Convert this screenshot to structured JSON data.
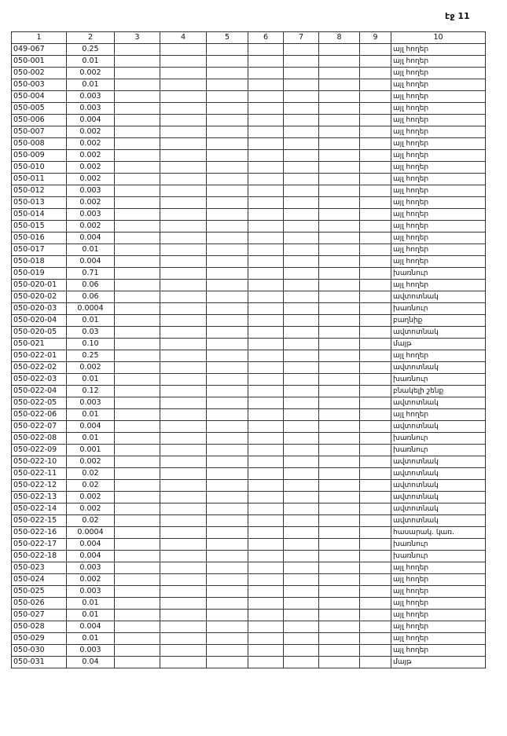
{
  "page_label": "էջ 11",
  "headers": [
    "1",
    "2",
    "3",
    "4",
    "5",
    "6",
    "7",
    "8",
    "9",
    "10"
  ],
  "rows": [
    [
      "049-067",
      "0.25",
      "այլ հողեր"
    ],
    [
      "050-001",
      "0.01",
      "այլ հողեր"
    ],
    [
      "050-002",
      "0.002",
      "այլ հողեր"
    ],
    [
      "050-003",
      "0.01",
      "այլ հողեր"
    ],
    [
      "050-004",
      "0.003",
      "այլ հողեր"
    ],
    [
      "050-005",
      "0.003",
      "այլ հողեր"
    ],
    [
      "050-006",
      "0.004",
      "այլ հողեր"
    ],
    [
      "050-007",
      "0.002",
      "այլ հողեր"
    ],
    [
      "050-008",
      "0.002",
      "այլ հողեր"
    ],
    [
      "050-009",
      "0.002",
      "այլ հողեր"
    ],
    [
      "050-010",
      "0.002",
      "այլ հողեր"
    ],
    [
      "050-011",
      "0.002",
      "այլ հողեր"
    ],
    [
      "050-012",
      "0.003",
      "այլ հողեր"
    ],
    [
      "050-013",
      "0.002",
      "այլ հողեր"
    ],
    [
      "050-014",
      "0.003",
      "այլ հողեր"
    ],
    [
      "050-015",
      "0.002",
      "այլ հողեր"
    ],
    [
      "050-016",
      "0.004",
      "այլ հողեր"
    ],
    [
      "050-017",
      "0.01",
      "այլ հողեր"
    ],
    [
      "050-018",
      "0.004",
      "այլ հողեր"
    ],
    [
      "050-019",
      "0.71",
      "խառնուր"
    ],
    [
      "050-020-01",
      "0.06",
      "այլ հողեր"
    ],
    [
      "050-020-02",
      "0.06",
      "ավտոտնակ"
    ],
    [
      "050-020-03",
      "0.0004",
      "խառնուր"
    ],
    [
      "050-020-04",
      "0.01",
      "բաղնիք"
    ],
    [
      "050-020-05",
      "0.03",
      "ավտոտնակ"
    ],
    [
      "050-021",
      "0.10",
      "մայթ"
    ],
    [
      "050-022-01",
      "0.25",
      "այլ հողեր"
    ],
    [
      "050-022-02",
      "0.002",
      "ավտոտնակ"
    ],
    [
      "050-022-03",
      "0.01",
      "խառնուր"
    ],
    [
      "050-022-04",
      "0.12",
      "բնակելի շենք"
    ],
    [
      "050-022-05",
      "0.003",
      "ավտոտնակ"
    ],
    [
      "050-022-06",
      "0.01",
      "այլ հողեր"
    ],
    [
      "050-022-07",
      "0.004",
      "ավտոտնակ"
    ],
    [
      "050-022-08",
      "0.01",
      "խառնուր"
    ],
    [
      "050-022-09",
      "0.001",
      "խառնուր"
    ],
    [
      "050-022-10",
      "0.002",
      "ավտոտնակ"
    ],
    [
      "050-022-11",
      "0.02",
      "ավտոտնակ"
    ],
    [
      "050-022-12",
      "0.02",
      "ավտոտնակ"
    ],
    [
      "050-022-13",
      "0.002",
      "ավտոտնակ"
    ],
    [
      "050-022-14",
      "0.002",
      "ավտոտնակ"
    ],
    [
      "050-022-15",
      "0.02",
      "ավտոտնակ"
    ],
    [
      "050-022-16",
      "0.0004",
      "հասարակ. կառ."
    ],
    [
      "050-022-17",
      "0.004",
      "խառնուր"
    ],
    [
      "050-022-18",
      "0.004",
      "խառնուր"
    ],
    [
      "050-023",
      "0.003",
      "այլ հողեր"
    ],
    [
      "050-024",
      "0.002",
      "այլ հողեր"
    ],
    [
      "050-025",
      "0.003",
      "այլ հողեր"
    ],
    [
      "050-026",
      "0.01",
      "այլ հողեր"
    ],
    [
      "050-027",
      "0.01",
      "այլ հողեր"
    ],
    [
      "050-028",
      "0.004",
      "այլ հողեր"
    ],
    [
      "050-029",
      "0.01",
      "այլ հողեր"
    ],
    [
      "050-030",
      "0.003",
      "այլ հողեր"
    ],
    [
      "050-031",
      "0.04",
      "մայթ"
    ]
  ]
}
